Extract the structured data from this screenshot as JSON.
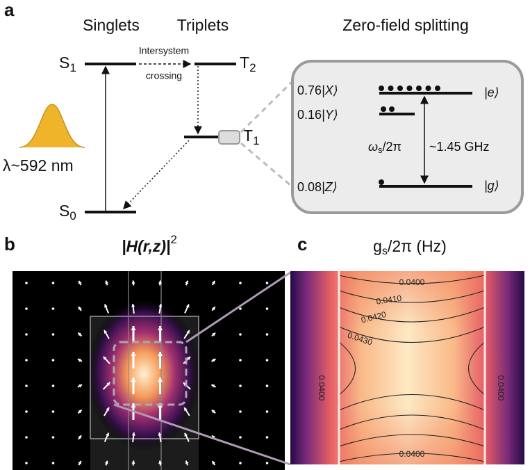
{
  "panel_a": {
    "label": "a",
    "headers": [
      "Singlets",
      "Triplets",
      "Zero-field splitting"
    ],
    "levels": {
      "S1": {
        "main": "S",
        "sub": "1"
      },
      "T2": {
        "main": "T",
        "sub": "2"
      },
      "T1": {
        "main": "T",
        "sub": "1"
      },
      "S0": {
        "main": "S",
        "sub": "0"
      }
    },
    "isc": [
      "Intersystem",
      "crossing"
    ],
    "excitation": "λ~592 nm",
    "zfs": {
      "states": [
        {
          "population": "0.76",
          "ket": "|X⟩"
        },
        {
          "population": "0.16",
          "ket": "|Y⟩"
        },
        {
          "population": "0.08",
          "ket": "|Z⟩"
        }
      ],
      "upper": "|e⟩",
      "lower": "|g⟩",
      "frequency_symbol": {
        "main": "ω",
        "sub": "s",
        "rest": "/2π"
      },
      "frequency": "~1.45 GHz"
    }
  },
  "panel_b": {
    "label": "b",
    "title": {
      "main": "|H(r,z)|",
      "sup": "2"
    }
  },
  "panel_c": {
    "label": "c",
    "title": {
      "main": "g",
      "sub": "s",
      "rest": "/2π (Hz)"
    },
    "contour_labels": [
      "0.0400",
      "0.0410",
      "0.0420",
      "0.0430",
      "0.0400",
      "0.0400",
      "0.0400"
    ]
  }
}
